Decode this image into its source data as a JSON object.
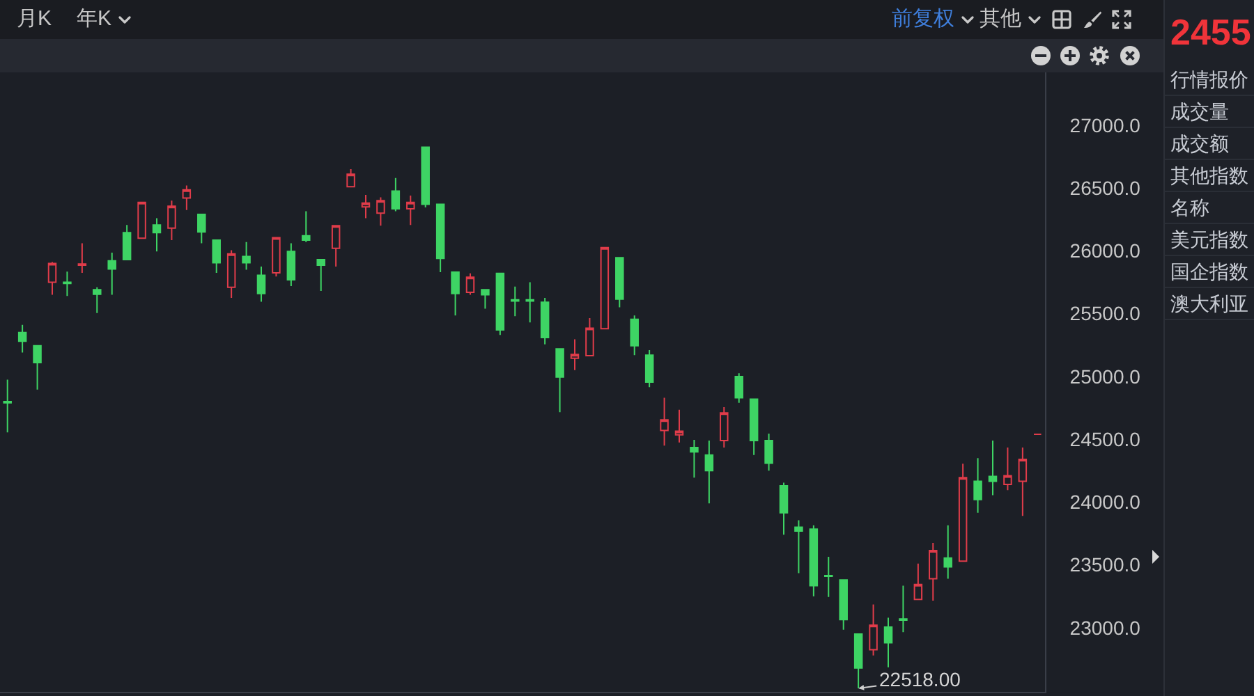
{
  "chart_data": [
    {
      "type": "candlestick",
      "categories": [
        null,
        null,
        null,
        null,
        null,
        null,
        null,
        null,
        null,
        null,
        null,
        null,
        null,
        null,
        null,
        null,
        null,
        null,
        null,
        null,
        null,
        null,
        null,
        null,
        null,
        null,
        null,
        null,
        null,
        null,
        null,
        null,
        null,
        null,
        null,
        null,
        null,
        null,
        null,
        null,
        null,
        null,
        null,
        null,
        null,
        null,
        null,
        null,
        null,
        null,
        null,
        null,
        null,
        null,
        null,
        null,
        null,
        null,
        null,
        null,
        null,
        null,
        null,
        null,
        null,
        null,
        null,
        null,
        null,
        null
      ],
      "ohlc": [
        [
          24800,
          24975,
          24555,
          24790
        ],
        [
          25350,
          25410,
          25190,
          25280
        ],
        [
          25245,
          25250,
          24895,
          25110
        ],
        [
          25750,
          25910,
          25650,
          25900
        ],
        [
          25750,
          25835,
          25640,
          25740
        ],
        [
          25885,
          26060,
          25825,
          25895
        ],
        [
          25690,
          25710,
          25505,
          25655
        ],
        [
          25920,
          25985,
          25650,
          25855
        ],
        [
          26145,
          26205,
          25925,
          25930
        ],
        [
          26100,
          26390,
          26095,
          26385
        ],
        [
          26205,
          26260,
          25995,
          26145
        ],
        [
          26180,
          26400,
          26085,
          26355
        ],
        [
          26420,
          26520,
          26325,
          26485
        ],
        [
          26290,
          26295,
          26060,
          26150
        ],
        [
          26085,
          26090,
          25825,
          25905
        ],
        [
          25710,
          26005,
          25625,
          25975
        ],
        [
          25955,
          26070,
          25850,
          25905
        ],
        [
          25805,
          25875,
          25595,
          25660
        ],
        [
          25825,
          26110,
          25795,
          26105
        ],
        [
          25995,
          26060,
          25720,
          25770
        ],
        [
          26120,
          26315,
          26070,
          26085
        ],
        [
          25930,
          25935,
          25680,
          25885
        ],
        [
          26020,
          26205,
          25875,
          26200
        ],
        [
          26510,
          26650,
          26505,
          26610
        ],
        [
          26350,
          26445,
          26260,
          26380
        ],
        [
          26300,
          26425,
          26200,
          26400
        ],
        [
          26475,
          26580,
          26315,
          26335
        ],
        [
          26335,
          26440,
          26205,
          26385
        ],
        [
          26825,
          26830,
          26345,
          26370
        ],
        [
          26370,
          26375,
          25830,
          25940
        ],
        [
          25830,
          25835,
          25485,
          25660
        ],
        [
          25670,
          25820,
          25650,
          25790
        ],
        [
          25690,
          25695,
          25540,
          25650
        ],
        [
          25820,
          25825,
          25330,
          25370
        ],
        [
          25610,
          25715,
          25480,
          25600
        ],
        [
          25610,
          25750,
          25430,
          25600
        ],
        [
          25590,
          25625,
          25255,
          25310
        ],
        [
          25220,
          25225,
          24715,
          24995
        ],
        [
          25145,
          25295,
          25050,
          25175
        ],
        [
          25165,
          25465,
          25160,
          25385
        ],
        [
          25380,
          26030,
          25375,
          26025
        ],
        [
          25945,
          25950,
          25550,
          25615
        ],
        [
          25455,
          25485,
          25170,
          25245
        ],
        [
          25170,
          25210,
          24915,
          24955
        ],
        [
          24570,
          24830,
          24450,
          24655
        ],
        [
          24535,
          24735,
          24475,
          24565
        ],
        [
          24435,
          24495,
          24195,
          24400
        ],
        [
          24375,
          24490,
          23990,
          24250
        ],
        [
          24490,
          24755,
          24435,
          24710
        ],
        [
          25000,
          25025,
          24790,
          24830
        ],
        [
          24820,
          24825,
          24375,
          24490
        ],
        [
          24490,
          24545,
          24250,
          24310
        ],
        [
          24130,
          24155,
          23740,
          23915
        ],
        [
          23800,
          23855,
          23435,
          23770
        ],
        [
          23785,
          23815,
          23250,
          23335
        ],
        [
          23415,
          23565,
          23245,
          23410
        ],
        [
          23380,
          23385,
          22985,
          23065
        ],
        [
          22950,
          22955,
          22518,
          22680
        ],
        [
          22825,
          23185,
          22780,
          23020
        ],
        [
          23005,
          23080,
          22685,
          22880
        ],
        [
          23070,
          23335,
          22965,
          23060
        ],
        [
          23225,
          23510,
          23220,
          23345
        ],
        [
          23390,
          23675,
          23215,
          23615
        ],
        [
          23555,
          23815,
          23390,
          23485
        ],
        [
          23530,
          24305,
          23525,
          24195
        ],
        [
          24165,
          24350,
          23915,
          24020
        ],
        [
          24205,
          24490,
          24055,
          24165
        ],
        [
          24140,
          24435,
          24095,
          24210
        ],
        [
          24165,
          24435,
          23890,
          24340
        ],
        [
          24540,
          24540,
          24540,
          24540
        ]
      ],
      "colors": [
        "#3ed464",
        "#3ed464",
        "#3ed464",
        "#e03c4a",
        "#3ed464",
        "#e03c4a",
        "#3ed464",
        "#3ed464",
        "#3ed464",
        "#e03c4a",
        "#3ed464",
        "#e03c4a",
        "#e03c4a",
        "#3ed464",
        "#3ed464",
        "#e03c4a",
        "#3ed464",
        "#3ed464",
        "#e03c4a",
        "#3ed464",
        "#3ed464",
        "#3ed464",
        "#e03c4a",
        "#e03c4a",
        "#e03c4a",
        "#e03c4a",
        "#3ed464",
        "#e03c4a",
        "#3ed464",
        "#3ed464",
        "#3ed464",
        "#e03c4a",
        "#3ed464",
        "#3ed464",
        "#3ed464",
        "#3ed464",
        "#3ed464",
        "#3ed464",
        "#e03c4a",
        "#e03c4a",
        "#e03c4a",
        "#3ed464",
        "#3ed464",
        "#3ed464",
        "#e03c4a",
        "#e03c4a",
        "#3ed464",
        "#3ed464",
        "#e03c4a",
        "#3ed464",
        "#3ed464",
        "#3ed464",
        "#3ed464",
        "#3ed464",
        "#3ed464",
        "#3ed464",
        "#3ed464",
        "#3ed464",
        "#e03c4a",
        "#3ed464",
        "#3ed464",
        "#e03c4a",
        "#e03c4a",
        "#3ed464",
        "#e03c4a",
        "#3ed464",
        "#3ed464",
        "#e03c4a",
        "#e03c4a",
        "#e03c4a"
      ],
      "ylim": [
        22490,
        27420
      ],
      "yticks": [
        {
          "value": 23000,
          "label": "23000.0"
        },
        {
          "value": 23500,
          "label": "23500.0"
        },
        {
          "value": 24000,
          "label": "24000.0"
        },
        {
          "value": 24500,
          "label": "24500.0"
        },
        {
          "value": 25000,
          "label": "25000.0"
        },
        {
          "value": 25500,
          "label": "25500.0"
        },
        {
          "value": 26000,
          "label": "26000.0"
        },
        {
          "value": 26500,
          "label": "26500.0"
        },
        {
          "value": 27000,
          "label": "27000.0"
        }
      ],
      "tick_labels": "y",
      "annotations": [
        "月K",
        "年K",
        "前复权",
        "其他",
        "22518.00"
      ]
    },
    {
      "type": "other",
      "title": "2455",
      "annotations": [
        "行情报价",
        "成交量",
        "成交额",
        "其他指数",
        "名称",
        "美元指数",
        "国企指数",
        "澳大利亚"
      ]
    }
  ]
}
